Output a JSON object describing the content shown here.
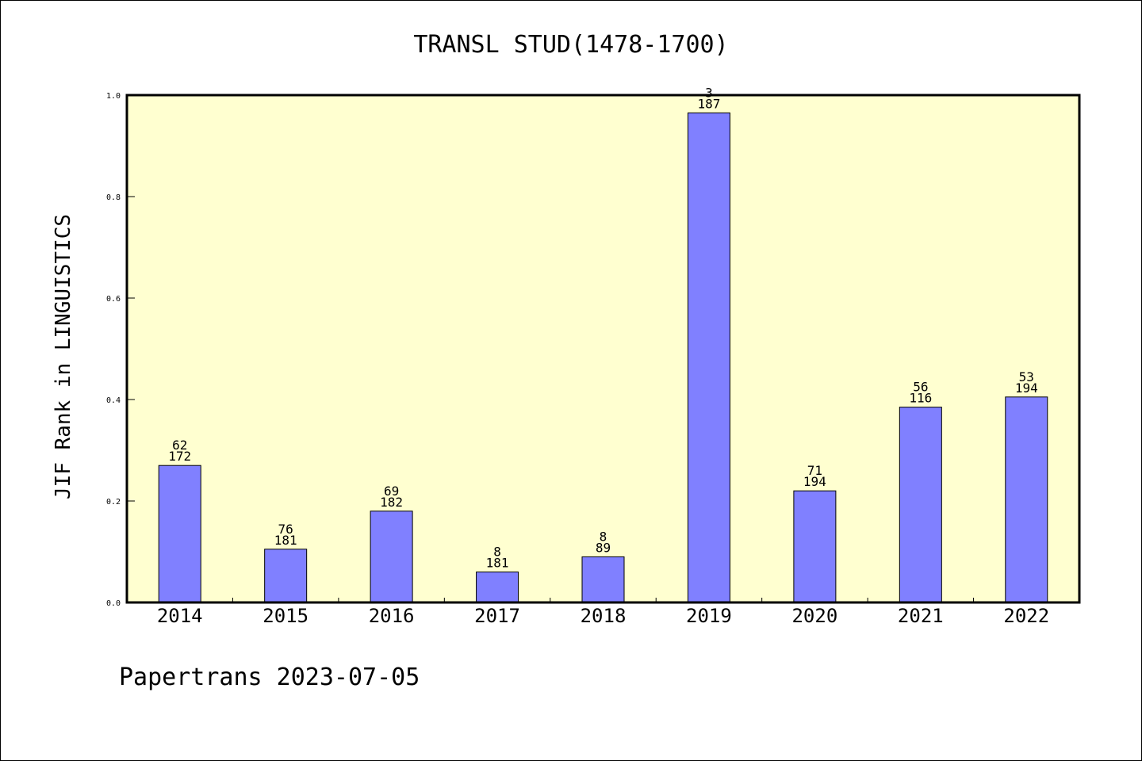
{
  "chart_data": {
    "type": "bar",
    "title": "TRANSL STUD(1478-1700)",
    "ylabel": "JIF Rank in LINGUISTICS",
    "xlabel": "",
    "ylim": [
      0,
      1.0
    ],
    "yticks": [
      "0.0",
      "0.2",
      "0.4",
      "0.6",
      "0.8",
      "1.0"
    ],
    "categories": [
      "2014",
      "2015",
      "2016",
      "2017",
      "2018",
      "2019",
      "2020",
      "2021",
      "2022"
    ],
    "values": [
      0.27,
      0.105,
      0.18,
      0.06,
      0.09,
      0.965,
      0.22,
      0.385,
      0.405
    ],
    "rank": [
      "62",
      "76",
      "69",
      "8",
      "8",
      "3",
      "71",
      "56",
      "53"
    ],
    "total": [
      "172",
      "181",
      "182",
      "181",
      "89",
      "187",
      "194",
      "116",
      "194"
    ],
    "grid": false,
    "colors": {
      "bar": "#8080ff",
      "plot_background": "#ffffd0",
      "axis": "#000000"
    }
  },
  "footer": "Papertrans 2023-07-05"
}
